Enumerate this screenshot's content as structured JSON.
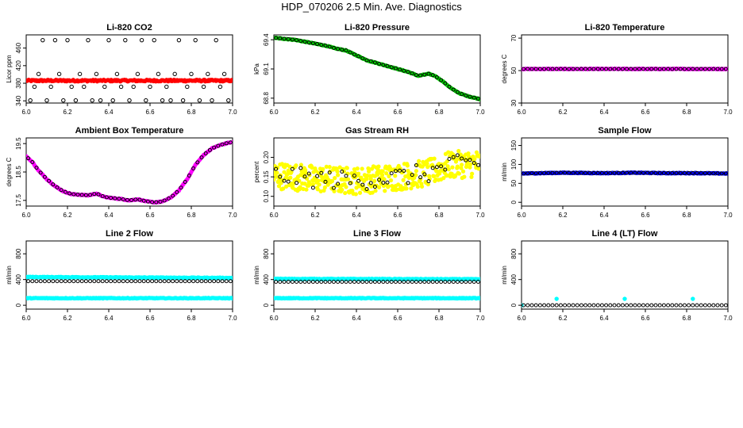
{
  "page": {
    "title": "HDP_070206  2.5 Min. Ave. Diagnostics"
  },
  "colors": {
    "red": "#ff0000",
    "green": "#00cc00",
    "magenta": "#ff00ff",
    "yellow": "#ffff00",
    "blue": "#0000ff",
    "cyan": "#00ffff",
    "black": "#000000"
  },
  "chart_data": [
    {
      "type": "scatter",
      "title": "Li-820 CO2",
      "ylabel": "Licor ppm",
      "xlim": [
        6.0,
        7.0
      ],
      "ylim": [
        335,
        490
      ],
      "xticks": [
        "6.0",
        "6.2",
        "6.4",
        "6.6",
        "6.8",
        "7.0"
      ],
      "yticks": [
        "340",
        "380",
        "420",
        "460"
      ],
      "series": [
        {
          "color": "red",
          "kind": "dense",
          "x_range": [
            6.0,
            7.0
          ],
          "y": 386,
          "jitter": 2
        },
        {
          "color": "black",
          "kind": "points",
          "x": [
            6.02,
            6.04,
            6.06,
            6.08,
            6.1,
            6.12,
            6.14,
            6.16,
            6.18,
            6.2,
            6.22,
            6.24,
            6.26,
            6.28,
            6.3,
            6.32,
            6.34,
            6.36,
            6.38,
            6.4,
            6.42,
            6.44,
            6.46,
            6.48,
            6.5,
            6.52,
            6.54,
            6.56,
            6.58,
            6.6,
            6.62,
            6.64,
            6.66,
            6.68,
            6.7,
            6.72,
            6.74,
            6.76,
            6.78,
            6.8,
            6.82,
            6.84,
            6.86,
            6.88,
            6.9,
            6.92,
            6.94,
            6.96,
            6.98
          ],
          "y": [
            341,
            372,
            401,
            478,
            341,
            372,
            478,
            401,
            341,
            478,
            372,
            341,
            401,
            372,
            478,
            341,
            401,
            341,
            372,
            478,
            341,
            401,
            372,
            478,
            341,
            372,
            401,
            478,
            341,
            372,
            478,
            401,
            341,
            372,
            341,
            401,
            478,
            341,
            372,
            401,
            478,
            341,
            372,
            401,
            341,
            478,
            372,
            401,
            341
          ]
        }
      ]
    },
    {
      "type": "scatter",
      "title": "Li-820 Pressure",
      "ylabel": "kPa",
      "xlim": [
        6.0,
        7.0
      ],
      "ylim": [
        68.75,
        69.45
      ],
      "xticks": [
        "6.0",
        "6.2",
        "6.4",
        "6.6",
        "6.8",
        "7.0"
      ],
      "yticks": [
        "68.8",
        "69.1",
        "69.4"
      ],
      "series": [
        {
          "color": "green",
          "kind": "curve",
          "x": [
            6.0,
            6.05,
            6.1,
            6.15,
            6.2,
            6.25,
            6.3,
            6.35,
            6.4,
            6.45,
            6.5,
            6.55,
            6.6,
            6.65,
            6.7,
            6.75,
            6.78,
            6.82,
            6.86,
            6.9,
            6.94,
            6.98,
            7.0
          ],
          "y": [
            69.42,
            69.41,
            69.4,
            69.38,
            69.36,
            69.34,
            69.31,
            69.29,
            69.24,
            69.19,
            69.16,
            69.13,
            69.1,
            69.07,
            69.03,
            69.05,
            69.03,
            68.97,
            68.9,
            68.85,
            68.82,
            68.8,
            68.79
          ]
        },
        {
          "color": "black",
          "kind": "sample",
          "step": 0.02
        }
      ]
    },
    {
      "type": "scatter",
      "title": "Li-820 Temperature",
      "ylabel": "degrees C",
      "xlim": [
        6.0,
        7.0
      ],
      "ylim": [
        30,
        72
      ],
      "xticks": [
        "6.0",
        "6.2",
        "6.4",
        "6.6",
        "6.8",
        "7.0"
      ],
      "yticks": [
        "30",
        "50",
        "70"
      ],
      "series": [
        {
          "color": "magenta",
          "kind": "curve",
          "x": [
            6.0,
            7.0
          ],
          "y": [
            51.0,
            51.0
          ]
        },
        {
          "color": "black",
          "kind": "sample",
          "step": 0.02
        }
      ]
    },
    {
      "type": "scatter",
      "title": "Ambient Box Temperature",
      "ylabel": "degrees C",
      "xlim": [
        6.0,
        7.0
      ],
      "ylim": [
        17.3,
        19.7
      ],
      "xticks": [
        "6.0",
        "6.2",
        "6.4",
        "6.6",
        "6.8",
        "7.0"
      ],
      "yticks": [
        "17.5",
        "18.5",
        "19.5"
      ],
      "series": [
        {
          "color": "magenta",
          "kind": "curve",
          "x": [
            6.0,
            6.03,
            6.06,
            6.1,
            6.14,
            6.18,
            6.22,
            6.26,
            6.3,
            6.34,
            6.38,
            6.42,
            6.46,
            6.5,
            6.54,
            6.58,
            6.62,
            6.66,
            6.7,
            6.74,
            6.78,
            6.82,
            6.86,
            6.9,
            6.94,
            6.98,
            7.0
          ],
          "y": [
            19.05,
            18.85,
            18.55,
            18.25,
            18.0,
            17.82,
            17.72,
            17.7,
            17.68,
            17.74,
            17.62,
            17.58,
            17.55,
            17.5,
            17.54,
            17.47,
            17.43,
            17.46,
            17.6,
            17.85,
            18.25,
            18.75,
            19.1,
            19.33,
            19.45,
            19.53,
            19.55
          ]
        },
        {
          "color": "black",
          "kind": "sample",
          "step": 0.02
        }
      ]
    },
    {
      "type": "scatter",
      "title": "Gas Stream RH",
      "ylabel": "percent",
      "xlim": [
        6.0,
        7.0
      ],
      "ylim": [
        0.075,
        0.25
      ],
      "xticks": [
        "6.0",
        "6.2",
        "6.4",
        "6.6",
        "6.8",
        "7.0"
      ],
      "yticks": [
        "0.10",
        "0.15",
        "0.20"
      ],
      "series": [
        {
          "color": "yellow",
          "kind": "noisy",
          "x": [
            6.0,
            6.2,
            6.4,
            6.6,
            6.75,
            6.85,
            7.0
          ],
          "y": [
            0.155,
            0.145,
            0.14,
            0.15,
            0.16,
            0.18,
            0.185
          ],
          "spread": 0.035
        },
        {
          "color": "black",
          "kind": "noisy-sample",
          "step": 0.02
        }
      ]
    },
    {
      "type": "scatter",
      "title": "Sample Flow",
      "ylabel": "ml/min",
      "xlim": [
        6.0,
        7.0
      ],
      "ylim": [
        -10,
        170
      ],
      "xticks": [
        "6.0",
        "6.2",
        "6.4",
        "6.6",
        "6.8",
        "7.0"
      ],
      "yticks": [
        "0",
        "50",
        "100",
        "150"
      ],
      "series": [
        {
          "color": "blue",
          "kind": "curve",
          "x": [
            6.0,
            6.2,
            6.4,
            6.55,
            6.7,
            6.85,
            7.0
          ],
          "y": [
            76,
            78,
            77,
            78,
            77,
            77,
            76
          ]
        },
        {
          "color": "black",
          "kind": "sample",
          "step": 0.02
        }
      ]
    },
    {
      "type": "scatter",
      "title": "Line 2 Flow",
      "ylabel": "ml/min",
      "xlim": [
        6.0,
        7.0
      ],
      "ylim": [
        -60,
        1000
      ],
      "xticks": [
        "6.0",
        "6.2",
        "6.4",
        "6.6",
        "6.8",
        "7.0"
      ],
      "yticks": [
        "0",
        "400",
        "800"
      ],
      "series": [
        {
          "color": "cyan",
          "kind": "curve",
          "x": [
            6.0,
            7.0
          ],
          "y": [
            440,
            425
          ]
        },
        {
          "color": "cyan",
          "kind": "curve",
          "x": [
            6.0,
            7.0
          ],
          "y": [
            110,
            110
          ]
        },
        {
          "color": "black",
          "kind": "flat-sample",
          "step": 0.02,
          "y": 375
        }
      ]
    },
    {
      "type": "scatter",
      "title": "Line 3 Flow",
      "ylabel": "ml/min",
      "xlim": [
        6.0,
        7.0
      ],
      "ylim": [
        -60,
        1000
      ],
      "xticks": [
        "6.0",
        "6.2",
        "6.4",
        "6.6",
        "6.8",
        "7.0"
      ],
      "yticks": [
        "0",
        "400",
        "800"
      ],
      "series": [
        {
          "color": "cyan",
          "kind": "curve",
          "x": [
            6.0,
            7.0
          ],
          "y": [
            410,
            405
          ]
        },
        {
          "color": "cyan",
          "kind": "curve",
          "x": [
            6.0,
            7.0
          ],
          "y": [
            110,
            110
          ]
        },
        {
          "color": "black",
          "kind": "flat-sample",
          "step": 0.02,
          "y": 365
        }
      ]
    },
    {
      "type": "scatter",
      "title": "Line 4 (LT) Flow",
      "ylabel": "ml/min",
      "xlim": [
        6.0,
        7.0
      ],
      "ylim": [
        -60,
        1000
      ],
      "xticks": [
        "6.0",
        "6.2",
        "6.4",
        "6.6",
        "6.8",
        "7.0"
      ],
      "yticks": [
        "0",
        "400",
        "800"
      ],
      "series": [
        {
          "color": "cyan",
          "kind": "points",
          "x": [
            6.0,
            6.17,
            6.5,
            6.83
          ],
          "y": [
            0,
            100,
            100,
            100
          ]
        },
        {
          "color": "black",
          "kind": "flat-sample",
          "step": 0.02,
          "y": 0
        }
      ]
    }
  ]
}
